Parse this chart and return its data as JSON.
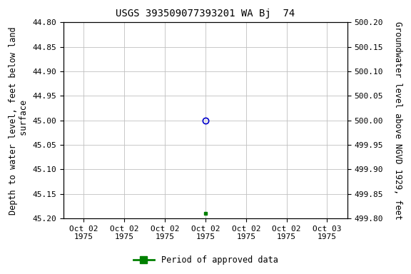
{
  "title": "USGS 393509077393201 WA Bj  74",
  "left_ylabel": "Depth to water level, feet below land\n surface",
  "right_ylabel": "Groundwater level above NGVD 1929, feet",
  "ylim_left": [
    44.8,
    45.2
  ],
  "ylim_right": [
    500.2,
    499.8
  ],
  "yticks_left": [
    44.8,
    44.85,
    44.9,
    44.95,
    45.0,
    45.05,
    45.1,
    45.15,
    45.2
  ],
  "yticks_right": [
    500.2,
    500.15,
    500.1,
    500.05,
    500.0,
    499.95,
    499.9,
    499.85,
    499.8
  ],
  "point_blue_value": 45.0,
  "point_green_value": 45.19,
  "legend_label": "Period of approved data",
  "legend_color": "#008000",
  "point_blue_color": "#0000CD",
  "bg_color": "#ffffff",
  "grid_color": "#c0c0c0",
  "title_fontsize": 10,
  "axis_label_fontsize": 8.5,
  "tick_fontsize": 8,
  "num_xticks": 7,
  "xtick_labels": [
    "Oct 02\n1975",
    "Oct 02\n1975",
    "Oct 02\n1975",
    "Oct 02\n1975",
    "Oct 02\n1975",
    "Oct 02\n1975",
    "Oct 03\n1975"
  ],
  "data_tick_index": 3
}
